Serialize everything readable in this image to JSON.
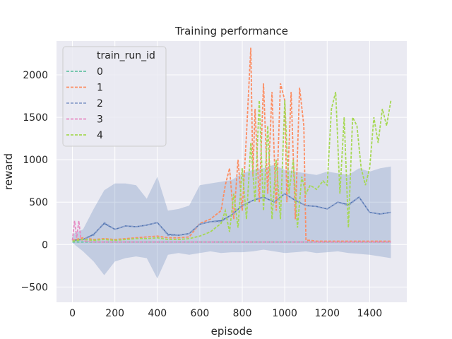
{
  "chart_data": {
    "type": "line",
    "title": "Training performance",
    "xlabel": "episode",
    "ylabel": "reward",
    "xlim": [
      -75,
      1575
    ],
    "ylim": [
      -680,
      2400
    ],
    "x_ticks": [
      0,
      200,
      400,
      600,
      800,
      1000,
      1200,
      1400
    ],
    "y_ticks": [
      -500,
      0,
      500,
      1000,
      1500,
      2000
    ],
    "grid": true,
    "legend": {
      "title": "train_run_id",
      "placement": "top-left"
    },
    "band": {
      "x": [
        0,
        50,
        100,
        150,
        200,
        250,
        300,
        350,
        400,
        450,
        500,
        550,
        600,
        650,
        700,
        750,
        800,
        850,
        900,
        950,
        1000,
        1050,
        1100,
        1150,
        1200,
        1250,
        1300,
        1350,
        1400,
        1450,
        1500
      ],
      "upper": [
        120,
        180,
        420,
        640,
        720,
        720,
        700,
        540,
        800,
        400,
        420,
        460,
        700,
        720,
        740,
        760,
        840,
        880,
        900,
        940,
        880,
        860,
        840,
        820,
        860,
        840,
        820,
        900,
        860,
        900,
        920
      ],
      "lower": [
        20,
        -80,
        -200,
        -360,
        -200,
        -160,
        -140,
        -160,
        -400,
        -120,
        -100,
        -120,
        -100,
        -80,
        -100,
        -90,
        -90,
        -80,
        -60,
        -80,
        -100,
        -90,
        -80,
        -100,
        -90,
        -80,
        -100,
        -110,
        -120,
        -140,
        -160
      ]
    },
    "mean_line": {
      "x": [
        0,
        50,
        100,
        150,
        200,
        250,
        300,
        350,
        400,
        450,
        500,
        550,
        600,
        650,
        700,
        750,
        800,
        850,
        900,
        950,
        1000,
        1050,
        1100,
        1150,
        1200,
        1250,
        1300,
        1350,
        1400,
        1450,
        1500
      ],
      "y": [
        50,
        60,
        120,
        250,
        180,
        220,
        210,
        230,
        260,
        120,
        110,
        130,
        240,
        270,
        280,
        350,
        460,
        520,
        560,
        500,
        600,
        520,
        460,
        450,
        420,
        500,
        470,
        560,
        380,
        360,
        380
      ]
    },
    "series": [
      {
        "name": "0",
        "color": "#66c2a5",
        "x": [
          0,
          1500
        ],
        "y": [
          30,
          30
        ]
      },
      {
        "name": "1",
        "color": "#fc8d62",
        "x": [
          0,
          50,
          100,
          150,
          200,
          250,
          300,
          350,
          400,
          450,
          500,
          550,
          600,
          650,
          700,
          720,
          740,
          760,
          780,
          800,
          820,
          840,
          850,
          860,
          880,
          900,
          920,
          940,
          960,
          980,
          1000,
          1010,
          1030,
          1050,
          1070,
          1090,
          1100,
          1120,
          1150,
          1200,
          1250,
          1300,
          1350,
          1400,
          1450,
          1500
        ],
        "y": [
          50,
          80,
          60,
          70,
          60,
          70,
          80,
          90,
          100,
          80,
          80,
          90,
          250,
          300,
          400,
          700,
          900,
          300,
          1000,
          400,
          1300,
          2320,
          800,
          1600,
          500,
          1900,
          600,
          1800,
          400,
          1900,
          1700,
          500,
          1800,
          300,
          1850,
          1400,
          50,
          50,
          40,
          40,
          40,
          40,
          40,
          40,
          40,
          40
        ]
      },
      {
        "name": "2",
        "color": "#8da0cb",
        "x": [
          0,
          50,
          100,
          150,
          200,
          250,
          300,
          350,
          400,
          450,
          500,
          550,
          600,
          650,
          700,
          750,
          800,
          850,
          900,
          950,
          1000,
          1050,
          1100,
          1150,
          1200,
          1250,
          1300,
          1350,
          1400,
          1450,
          1500
        ],
        "y": [
          40,
          60,
          110,
          260,
          180,
          220,
          210,
          230,
          260,
          110,
          110,
          130,
          240,
          270,
          270,
          350,
          460,
          520,
          560,
          500,
          600,
          520,
          460,
          450,
          420,
          500,
          460,
          560,
          380,
          360,
          380
        ]
      },
      {
        "name": "3",
        "color": "#e78ac3",
        "x": [
          0,
          10,
          20,
          30,
          40,
          60,
          100,
          200,
          400,
          600,
          800,
          1000,
          1200,
          1400,
          1500
        ],
        "y": [
          50,
          280,
          80,
          280,
          60,
          40,
          30,
          30,
          30,
          30,
          30,
          30,
          30,
          30,
          30
        ]
      },
      {
        "name": "4",
        "color": "#a6d854",
        "x": [
          0,
          50,
          100,
          150,
          200,
          250,
          300,
          350,
          400,
          450,
          500,
          550,
          600,
          650,
          700,
          720,
          740,
          760,
          780,
          800,
          820,
          840,
          860,
          880,
          900,
          920,
          940,
          960,
          980,
          1000,
          1020,
          1040,
          1060,
          1080,
          1100,
          1120,
          1150,
          1180,
          1200,
          1220,
          1240,
          1260,
          1280,
          1300,
          1320,
          1340,
          1360,
          1380,
          1400,
          1420,
          1440,
          1460,
          1480,
          1500
        ],
        "y": [
          40,
          60,
          50,
          60,
          50,
          60,
          70,
          70,
          80,
          60,
          60,
          70,
          100,
          150,
          250,
          400,
          150,
          600,
          200,
          900,
          300,
          1200,
          500,
          1700,
          400,
          1400,
          300,
          1000,
          300,
          1700,
          600,
          1000,
          200,
          800,
          600,
          700,
          650,
          750,
          700,
          1600,
          1800,
          600,
          1500,
          200,
          1500,
          1400,
          900,
          700,
          900,
          1500,
          1200,
          1600,
          1400,
          1700
        ]
      }
    ]
  }
}
